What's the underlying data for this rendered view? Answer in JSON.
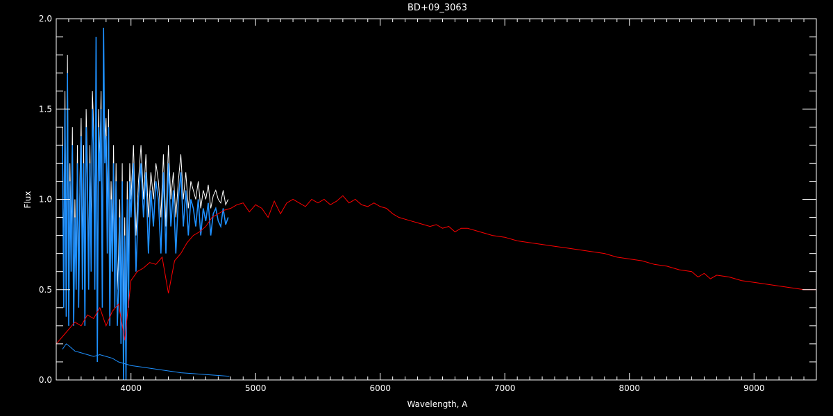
{
  "colors": {
    "background": "#000000",
    "axes": "#ffffff",
    "observed": "#ffffff",
    "observed_fill": "#1e90ff",
    "error": "#1e90ff",
    "model": "#ff0000"
  },
  "chart_data": {
    "type": "line",
    "title": "BD+09_3063",
    "xlabel": "Wavelength, A",
    "ylabel": "Flux",
    "xlim": [
      3400,
      9500
    ],
    "ylim": [
      0,
      2.0
    ],
    "x_ticks": [
      4000,
      5000,
      6000,
      7000,
      8000,
      9000
    ],
    "y_ticks": [
      0.0,
      0.5,
      1.0,
      1.5,
      2.0
    ],
    "y_tick_labels": [
      "0.0",
      "0.5",
      "1.0",
      "1.5",
      "2.0"
    ],
    "grid": false,
    "series": [
      {
        "role": "model",
        "color": "#ff0000",
        "x": [
          3400,
          3450,
          3500,
          3550,
          3600,
          3650,
          3700,
          3750,
          3800,
          3850,
          3900,
          3950,
          4000,
          4050,
          4100,
          4150,
          4200,
          4250,
          4300,
          4350,
          4400,
          4450,
          4500,
          4550,
          4600,
          4650,
          4700,
          4750,
          4800,
          4850,
          4900,
          4950,
          5000,
          5050,
          5100,
          5150,
          5200,
          5250,
          5300,
          5350,
          5400,
          5450,
          5500,
          5550,
          5600,
          5650,
          5700,
          5750,
          5800,
          5850,
          5900,
          5950,
          6000,
          6050,
          6100,
          6150,
          6200,
          6250,
          6300,
          6350,
          6400,
          6450,
          6500,
          6550,
          6600,
          6650,
          6700,
          6800,
          6900,
          7000,
          7100,
          7200,
          7300,
          7400,
          7500,
          7600,
          7700,
          7800,
          7900,
          8000,
          8100,
          8200,
          8300,
          8400,
          8500,
          8550,
          8600,
          8650,
          8700,
          8800,
          8900,
          9000,
          9100,
          9200,
          9300,
          9400,
          9500
        ],
        "y": [
          0.2,
          0.24,
          0.28,
          0.32,
          0.3,
          0.36,
          0.34,
          0.4,
          0.3,
          0.38,
          0.42,
          0.22,
          0.55,
          0.6,
          0.62,
          0.65,
          0.64,
          0.68,
          0.48,
          0.66,
          0.7,
          0.76,
          0.8,
          0.82,
          0.85,
          0.9,
          0.92,
          0.94,
          0.95,
          0.97,
          0.98,
          0.93,
          0.97,
          0.95,
          0.9,
          0.99,
          0.92,
          0.98,
          1.0,
          0.98,
          0.96,
          1.0,
          0.98,
          1.0,
          0.97,
          0.99,
          1.02,
          0.98,
          1.0,
          0.97,
          0.96,
          0.98,
          0.96,
          0.95,
          0.92,
          0.9,
          0.89,
          0.88,
          0.87,
          0.86,
          0.85,
          0.86,
          0.84,
          0.85,
          0.82,
          0.84,
          0.84,
          0.82,
          0.8,
          0.79,
          0.77,
          0.76,
          0.75,
          0.74,
          0.73,
          0.72,
          0.71,
          0.7,
          0.68,
          0.67,
          0.66,
          0.64,
          0.63,
          0.61,
          0.6,
          0.57,
          0.59,
          0.56,
          0.58,
          0.57,
          0.55,
          0.54,
          0.53,
          0.52,
          0.51,
          0.5,
          0.5
        ]
      },
      {
        "role": "error",
        "color": "#1e90ff",
        "x": [
          3450,
          3480,
          3500,
          3550,
          3600,
          3650,
          3700,
          3750,
          3800,
          3850,
          3900,
          3950,
          4000,
          4100,
          4200,
          4300,
          4400,
          4500,
          4600,
          4700,
          4790
        ],
        "y": [
          0.17,
          0.2,
          0.19,
          0.16,
          0.15,
          0.14,
          0.13,
          0.14,
          0.13,
          0.12,
          0.1,
          0.09,
          0.08,
          0.07,
          0.06,
          0.05,
          0.04,
          0.035,
          0.03,
          0.025,
          0.02
        ]
      },
      {
        "role": "observed",
        "color": "#ffffff",
        "x": [
          3450,
          3460,
          3470,
          3480,
          3490,
          3500,
          3510,
          3520,
          3530,
          3540,
          3550,
          3560,
          3570,
          3580,
          3590,
          3600,
          3610,
          3620,
          3630,
          3640,
          3650,
          3660,
          3670,
          3680,
          3690,
          3700,
          3710,
          3720,
          3730,
          3740,
          3750,
          3760,
          3770,
          3780,
          3790,
          3800,
          3810,
          3820,
          3830,
          3840,
          3850,
          3860,
          3870,
          3880,
          3890,
          3900,
          3910,
          3920,
          3930,
          3940,
          3950,
          3960,
          3970,
          3980,
          3990,
          4000,
          4020,
          4040,
          4060,
          4080,
          4100,
          4120,
          4140,
          4160,
          4180,
          4200,
          4220,
          4240,
          4260,
          4280,
          4300,
          4320,
          4340,
          4360,
          4380,
          4400,
          4420,
          4440,
          4460,
          4480,
          4500,
          4520,
          4540,
          4560,
          4580,
          4600,
          4620,
          4640,
          4660,
          4680,
          4700,
          4720,
          4740,
          4760,
          4780
        ],
        "y": [
          1.4,
          0.6,
          1.6,
          0.5,
          1.8,
          0.45,
          1.2,
          0.8,
          1.4,
          0.4,
          1.0,
          0.6,
          1.3,
          0.5,
          1.1,
          1.45,
          0.7,
          1.3,
          0.45,
          1.5,
          1.2,
          0.6,
          1.3,
          0.8,
          1.6,
          1.4,
          0.7,
          1.8,
          0.4,
          1.5,
          1.2,
          1.6,
          0.6,
          1.75,
          1.3,
          1.45,
          0.9,
          1.5,
          0.5,
          1.1,
          0.8,
          1.3,
          0.6,
          1.2,
          0.5,
          0.7,
          1.0,
          0.4,
          1.2,
          0.3,
          0.9,
          0.3,
          1.1,
          0.6,
          1.2,
          1.0,
          1.3,
          0.8,
          1.1,
          1.3,
          1.0,
          1.25,
          0.9,
          1.15,
          1.0,
          1.2,
          1.1,
          0.9,
          1.25,
          0.85,
          1.3,
          1.0,
          1.15,
          0.9,
          1.1,
          1.25,
          1.0,
          1.15,
          0.95,
          1.1,
          1.05,
          1.0,
          1.1,
          0.95,
          1.05,
          1.0,
          1.08,
          0.95,
          1.02,
          1.05,
          1.0,
          0.98,
          1.05,
          0.97,
          1.0
        ]
      },
      {
        "role": "observed_fill",
        "color": "#1e90ff",
        "x": [
          3450,
          3460,
          3470,
          3480,
          3490,
          3500,
          3510,
          3520,
          3530,
          3540,
          3550,
          3560,
          3570,
          3580,
          3590,
          3600,
          3610,
          3620,
          3630,
          3640,
          3650,
          3660,
          3670,
          3680,
          3690,
          3700,
          3710,
          3720,
          3730,
          3740,
          3750,
          3760,
          3770,
          3780,
          3790,
          3800,
          3810,
          3820,
          3830,
          3840,
          3850,
          3860,
          3870,
          3880,
          3890,
          3900,
          3910,
          3920,
          3930,
          3940,
          3950,
          3960,
          3970,
          3980,
          3990,
          4000,
          4020,
          4040,
          4060,
          4080,
          4100,
          4120,
          4140,
          4160,
          4180,
          4200,
          4220,
          4240,
          4260,
          4280,
          4300,
          4320,
          4340,
          4360,
          4380,
          4400,
          4420,
          4440,
          4460,
          4480,
          4500,
          4520,
          4540,
          4560,
          4580,
          4600,
          4620,
          4640,
          4660,
          4680,
          4700,
          4720,
          4740,
          4760,
          4780
        ],
        "y": [
          1.3,
          0.4,
          1.5,
          0.35,
          1.7,
          0.3,
          1.1,
          0.6,
          1.3,
          0.3,
          0.9,
          0.5,
          1.2,
          0.4,
          1.0,
          1.35,
          0.5,
          1.2,
          0.3,
          1.4,
          1.1,
          0.5,
          1.2,
          0.6,
          1.5,
          1.3,
          0.5,
          1.9,
          0.1,
          1.4,
          1.1,
          1.5,
          0.4,
          1.95,
          1.2,
          1.35,
          0.7,
          1.4,
          0.3,
          1.0,
          0.6,
          1.2,
          0.4,
          1.1,
          0.3,
          0.5,
          0.9,
          0.2,
          1.1,
          0.0,
          0.8,
          0.0,
          1.0,
          0.4,
          1.1,
          0.9,
          1.2,
          0.6,
          1.0,
          1.2,
          0.9,
          1.15,
          0.7,
          1.05,
          0.85,
          1.1,
          1.0,
          0.7,
          1.15,
          0.7,
          1.2,
          0.85,
          1.05,
          0.7,
          1.0,
          1.15,
          0.85,
          1.05,
          0.8,
          1.0,
          0.95,
          0.85,
          1.0,
          0.8,
          0.95,
          0.88,
          0.98,
          0.8,
          0.92,
          0.95,
          0.88,
          0.85,
          0.95,
          0.86,
          0.9
        ]
      }
    ]
  }
}
